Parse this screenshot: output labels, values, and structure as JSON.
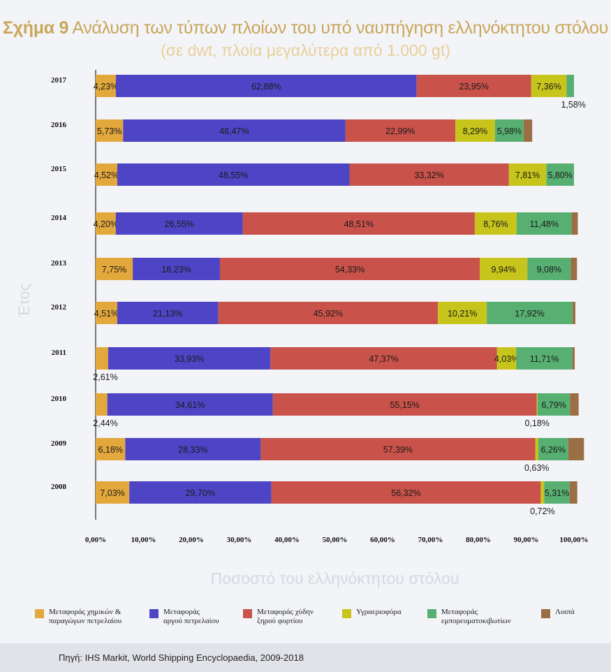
{
  "title_bold": "Σχήμα 9",
  "title_rest": " Ανάλυση των τύπων πλοίων του υπό ναυπήγηση ελληνόκτητου στόλου",
  "subtitle": "(σε dwt, πλοία μεγαλύτερα από 1.000 gt)",
  "source": "Πηγή: IHS Markit, World Shipping Encyclopaedia, 2009-2018",
  "colors": {
    "chemical": "#e3a83c",
    "crude": "#4e45c6",
    "dry_bulk": "#c9524a",
    "lpg": "#c7c51b",
    "container": "#57b072",
    "other": "#9a6f45"
  },
  "chart_data": {
    "type": "bar",
    "orientation": "horizontal",
    "stacked": true,
    "xlabel": "Ποσοστό του ελληνόκτητου στόλου",
    "ylabel": "Έτος",
    "xlim": [
      0,
      100
    ],
    "x_ticks": [
      "0,00%",
      "10,00%",
      "20,00%",
      "30,00%",
      "40,00%",
      "50,00%",
      "60,00%",
      "70,00%",
      "80,00%",
      "90,00%",
      "100,00%"
    ],
    "categories": [
      "2017",
      "2016",
      "2015",
      "2014",
      "2013",
      "2012",
      "2011",
      "2010",
      "2009",
      "2008"
    ],
    "series": [
      {
        "name": "Μεταφοράς χημικών &\nπαραγώγων πετρελαίου",
        "key": "chemical",
        "values": [
          4.23,
          5.73,
          4.52,
          4.2,
          7.75,
          4.51,
          2.61,
          2.44,
          6.18,
          7.03
        ],
        "labels": [
          "4,23%",
          "5,73%",
          "4,52%",
          "4,20%",
          "7,75%",
          "4,51%",
          "2,61%",
          "2,44%",
          "6,18%",
          "7,03%"
        ]
      },
      {
        "name": "Μεταφοράς\nαργού πετρελαίου",
        "key": "crude",
        "values": [
          62.88,
          46.47,
          48.55,
          26.55,
          18.23,
          21.13,
          33.93,
          34.61,
          28.33,
          29.7
        ],
        "labels": [
          "62,88%",
          "46,47%",
          "48,55%",
          "26,55%",
          "18,23%",
          "21,13%",
          "33,93%",
          "34,61%",
          "28,33%",
          "29,70%"
        ]
      },
      {
        "name": "Μεταφοράς χύδην\nξηρού φορτίου",
        "key": "dry_bulk",
        "values": [
          23.95,
          22.99,
          33.32,
          48.51,
          54.33,
          45.92,
          47.37,
          55.15,
          57.39,
          56.32
        ],
        "labels": [
          "23,95%",
          "22,99%",
          "33,32%",
          "48,51%",
          "54,33%",
          "45,92%",
          "47,37%",
          "55,15%",
          "57,39%",
          "56,32%"
        ]
      },
      {
        "name": "Υγραεριοφόρα",
        "key": "lpg",
        "values": [
          7.36,
          8.29,
          7.81,
          8.76,
          9.94,
          10.21,
          4.03,
          0.18,
          0.63,
          0.72
        ],
        "labels": [
          "7,36%",
          "8,29%",
          "7,81%",
          "8,76%",
          "9,94%",
          "10,21%",
          "4,03%",
          "0,18%",
          "0,63%",
          "0,72%"
        ]
      },
      {
        "name": "Μεταφοράς\nεμπορευματοκιβωτίων",
        "key": "container",
        "values": [
          1.58,
          5.98,
          5.8,
          11.48,
          9.08,
          17.92,
          11.71,
          6.79,
          6.26,
          5.31
        ],
        "labels": [
          "1,58%",
          "5,98%",
          "5,80%",
          "11,48%",
          "9,08%",
          "17,92%",
          "11,71%",
          "6,79%",
          "6,26%",
          "5,31%"
        ]
      },
      {
        "name": "Λοιπά",
        "key": "other",
        "values": [
          0.0,
          1.8,
          0.0,
          1.3,
          1.3,
          0.6,
          0.5,
          1.8,
          3.3,
          1.6
        ],
        "labels": [
          "",
          "",
          "",
          "",
          "",
          "",
          "",
          "",
          "",
          ""
        ]
      }
    ]
  }
}
